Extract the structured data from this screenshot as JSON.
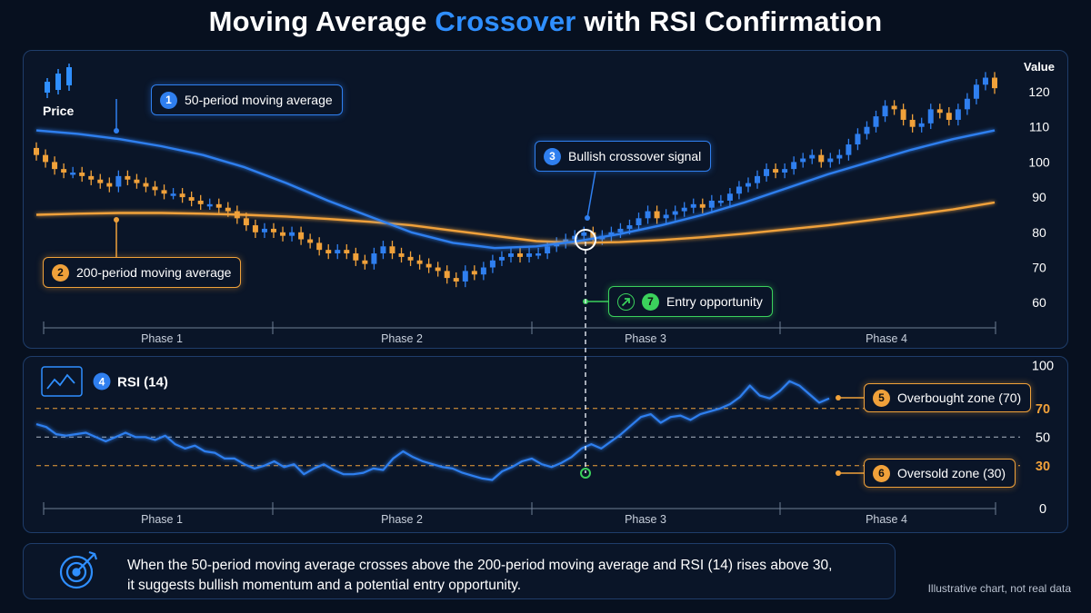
{
  "title": {
    "lead": "Moving Average ",
    "accent": "Crossover",
    "tail": " with RSI Confirmation"
  },
  "price_panel": {
    "y_axis_title": "Value",
    "price_label": "Price",
    "phases": [
      "Phase 1",
      "Phase 2",
      "Phase 3",
      "Phase 4"
    ]
  },
  "rsi_panel": {
    "label": "RSI (14)",
    "phases": [
      "Phase 1",
      "Phase 2",
      "Phase 3",
      "Phase 4"
    ]
  },
  "callouts": {
    "ma50": {
      "num": "1",
      "label": "50-period moving average"
    },
    "ma200": {
      "num": "2",
      "label": "200-period moving average"
    },
    "crossover": {
      "num": "3",
      "label": "Bullish crossover signal"
    },
    "rsi": {
      "num": "4"
    },
    "overbought": {
      "num": "5",
      "label": "Overbought zone (70)"
    },
    "oversold": {
      "num": "6",
      "label": "Oversold zone (30)"
    },
    "entry": {
      "num": "7",
      "label": "Entry opportunity"
    }
  },
  "note": {
    "line1": "When the 50-period moving average crosses above the 200-period moving average and RSI (14) rises above 30,",
    "line2": "it suggests bullish momentum and a potential entry opportunity."
  },
  "disclaimer": "Illustrative chart, not real data",
  "colors": {
    "blue": "#2f7fef",
    "orange": "#f0a13a",
    "green": "#3bd15c",
    "background": "#07101f"
  },
  "icons": {
    "price": "candlestick-icon",
    "rsi": "line-chart-icon",
    "note": "target-icon",
    "entry": "arrow-up-right-icon"
  },
  "chart_data": [
    {
      "type": "candlestick",
      "ylabel": "Value",
      "ylim": [
        55,
        125
      ],
      "yticks": [
        60,
        70,
        80,
        90,
        100,
        110,
        120
      ],
      "grid": false,
      "phases": [
        "Phase 1",
        "Phase 2",
        "Phase 3",
        "Phase 4"
      ],
      "close": [
        102,
        100,
        98,
        97,
        97,
        96,
        95,
        94,
        93,
        96,
        95,
        94,
        93,
        92,
        91,
        91,
        90,
        89,
        88,
        88,
        87,
        86,
        84,
        82,
        80,
        81,
        80,
        79,
        80,
        78,
        77,
        75,
        74,
        75,
        74,
        72,
        71,
        74,
        76,
        74,
        73,
        72,
        71,
        70,
        69,
        67,
        66,
        69,
        68,
        70,
        72,
        73,
        74,
        73,
        74,
        74,
        76,
        77,
        78,
        79,
        80,
        78,
        79,
        80,
        81,
        82,
        84,
        86,
        84,
        85,
        86,
        87,
        88,
        87,
        89,
        89,
        91,
        93,
        94,
        96,
        98,
        97,
        98,
        100,
        101,
        102,
        100,
        101,
        102,
        105,
        108,
        110,
        113,
        116,
        115,
        112,
        110,
        111,
        115,
        114,
        112,
        115,
        118,
        122,
        124,
        121
      ],
      "series": [
        {
          "name": "50-period moving average",
          "values": [
            109,
            108,
            106.5,
            104.5,
            102,
            98.5,
            94,
            89,
            84.5,
            80,
            77,
            75.5,
            76,
            77.5,
            79.5,
            82,
            85,
            88.5,
            92.5,
            96.5,
            100,
            103.5,
            106.5,
            109
          ]
        },
        {
          "name": "200-period moving average",
          "values": [
            85,
            85.3,
            85.5,
            85.5,
            85.3,
            85,
            84.5,
            83.8,
            83,
            82,
            80.5,
            79,
            77.5,
            77,
            77.2,
            77.8,
            78.6,
            79.6,
            80.8,
            82,
            83.4,
            84.9,
            86.5,
            88.5
          ]
        }
      ]
    },
    {
      "type": "line",
      "title": "RSI (14)",
      "ylim": [
        0,
        100
      ],
      "yticks": [
        0,
        30,
        50,
        70,
        100
      ],
      "reference_lines": [
        {
          "value": 70,
          "label": "Overbought zone (70)"
        },
        {
          "value": 30,
          "label": "Oversold zone (30)"
        }
      ],
      "phases": [
        "Phase 1",
        "Phase 2",
        "Phase 3",
        "Phase 4"
      ],
      "series": [
        {
          "name": "RSI (14)",
          "values": [
            59,
            57,
            52,
            51,
            52,
            53,
            50,
            47,
            50,
            53,
            50,
            50,
            48,
            51,
            45,
            42,
            44,
            40,
            39,
            35,
            35,
            31,
            28,
            30,
            33,
            29,
            31,
            24,
            28,
            31,
            27,
            24,
            24,
            25,
            28,
            27,
            35,
            40,
            36,
            33,
            31,
            29,
            28,
            25,
            23,
            21,
            20,
            26,
            29,
            33,
            35,
            31,
            29,
            32,
            36,
            42,
            45,
            42,
            47,
            52,
            58,
            64,
            66,
            60,
            64,
            65,
            62,
            66,
            68,
            70,
            73,
            78,
            86,
            79,
            77,
            82,
            89,
            86,
            80,
            74,
            77
          ]
        }
      ]
    }
  ]
}
